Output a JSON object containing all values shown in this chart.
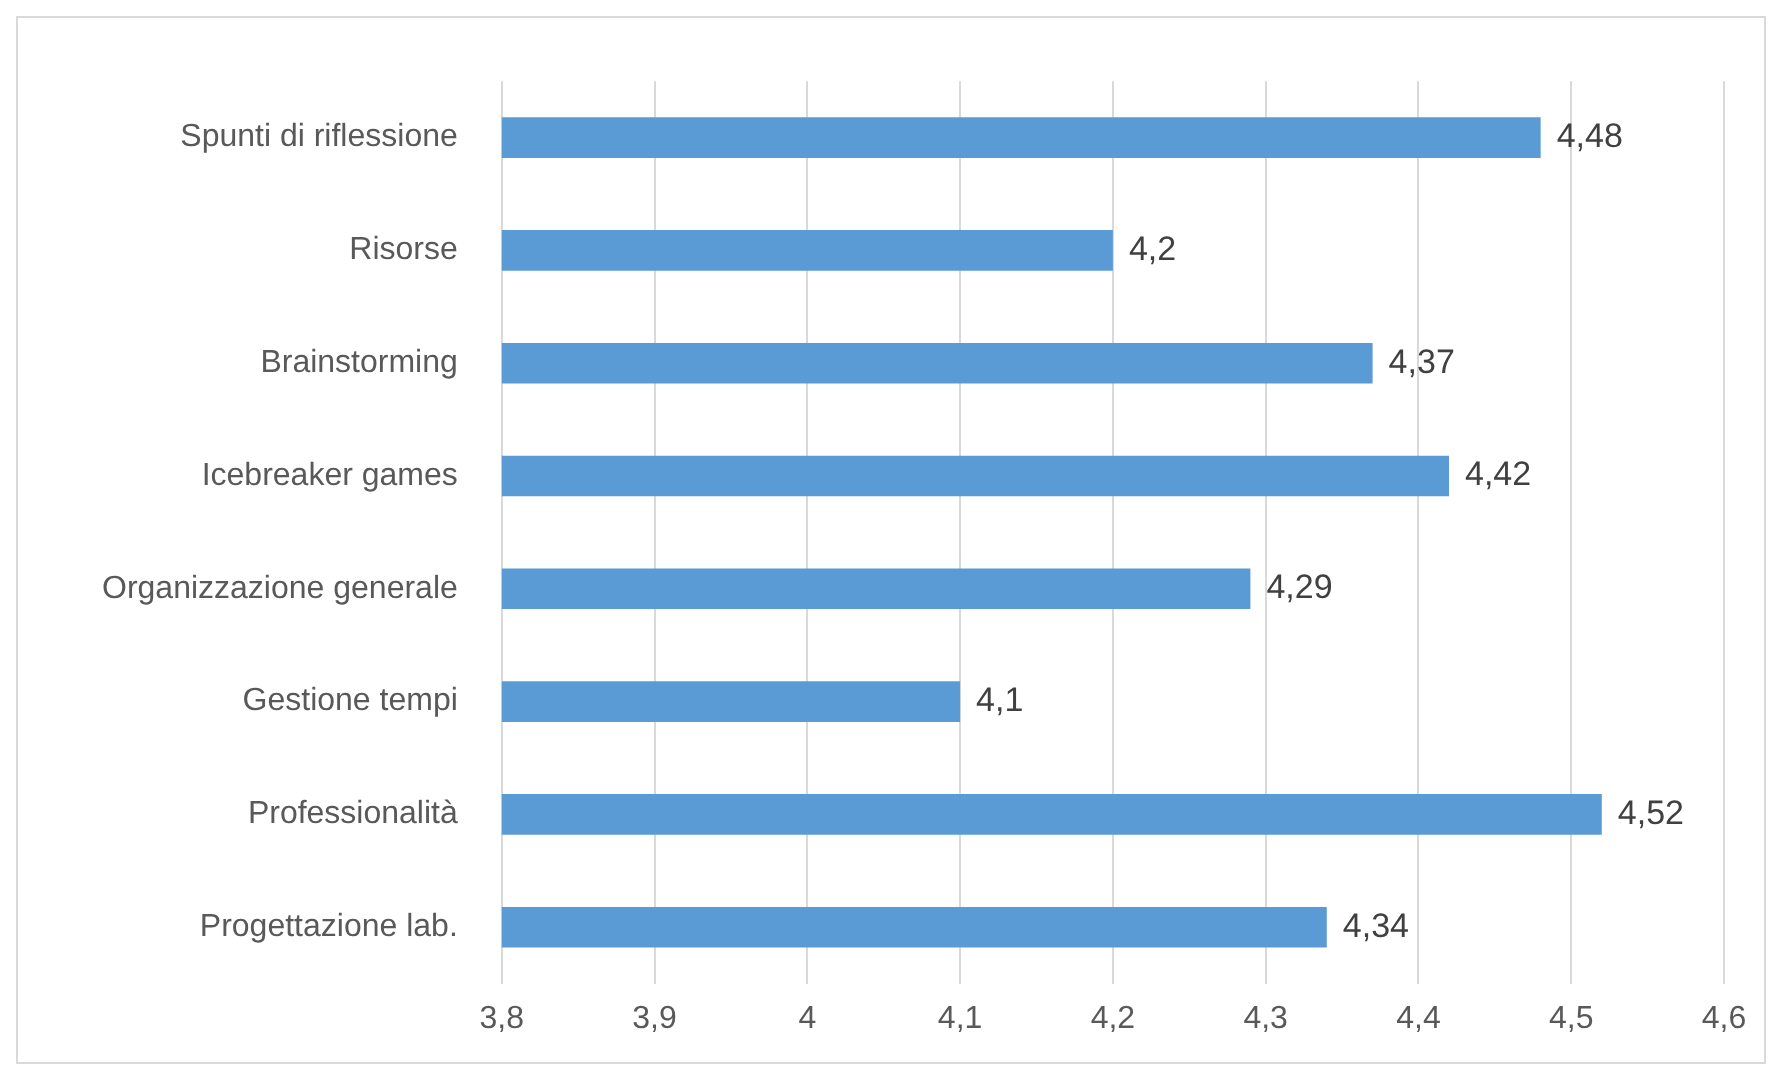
{
  "chart_data": {
    "type": "bar",
    "orientation": "horizontal",
    "categories": [
      "Spunti di riflessione",
      "Risorse",
      "Brainstorming",
      "Icebreaker games",
      "Organizzazione generale",
      "Gestione tempi",
      "Professionalità",
      "Progettazione lab."
    ],
    "values": [
      4.48,
      4.2,
      4.37,
      4.42,
      4.29,
      4.1,
      4.52,
      4.34
    ],
    "value_labels": [
      "4,48",
      "4,2",
      "4,37",
      "4,42",
      "4,29",
      "4,1",
      "4,52",
      "4,34"
    ],
    "color": "#5b9bd5",
    "xlim": [
      3.8,
      4.6
    ],
    "xticks": [
      {
        "value": 3.8,
        "label": "3,8"
      },
      {
        "value": 3.9,
        "label": "3,9"
      },
      {
        "value": 4,
        "label": "4"
      },
      {
        "value": 4.1,
        "label": "4,1"
      },
      {
        "value": 4.2,
        "label": "4,2"
      },
      {
        "value": 4.3,
        "label": "4,3"
      },
      {
        "value": 4.4,
        "label": "4,4"
      },
      {
        "value": 4.5,
        "label": "4,5"
      },
      {
        "value": 4.6,
        "label": "4,6"
      }
    ],
    "grid": "x",
    "legend": false
  }
}
